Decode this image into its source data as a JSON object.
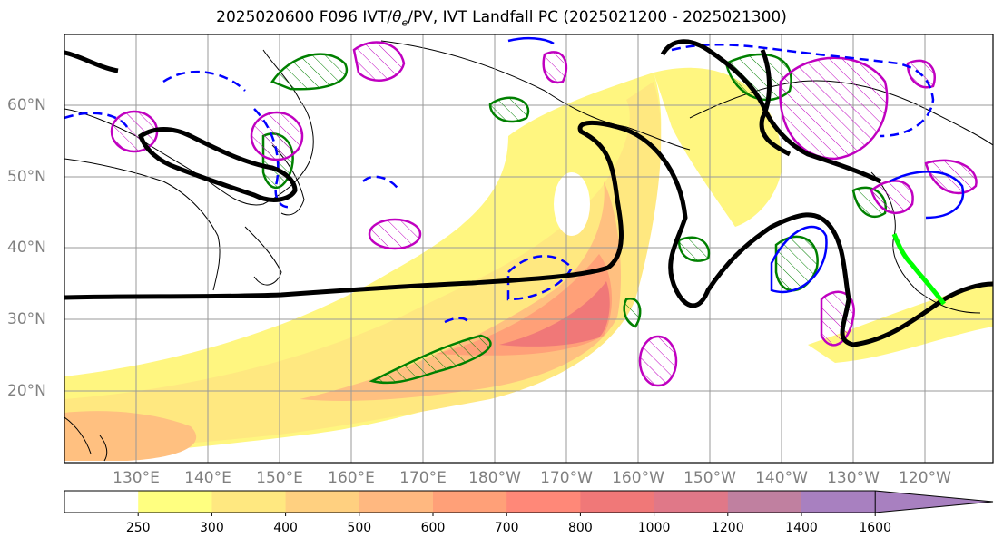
{
  "title": "2025020600 F096 IVT/θe/PV, IVT Landfall PC (2025021200 - 2025021300)",
  "title_parts": {
    "prefix": "2025020600 F096 IVT/",
    "theta": "θ",
    "theta_sub": "e",
    "suffix": "/PV, IVT Landfall PC (2025021200 - 2025021300)"
  },
  "lat_labels": [
    "60°N",
    "50°N",
    "40°N",
    "30°N",
    "20°N"
  ],
  "lon_labels": [
    "130°E",
    "140°E",
    "150°E",
    "160°E",
    "170°E",
    "180°W",
    "170°W",
    "160°W",
    "150°W",
    "140°W",
    "130°W",
    "120°W"
  ],
  "colorbar": {
    "ticks": [
      "250",
      "300",
      "400",
      "500",
      "600",
      "700",
      "800",
      "1000",
      "1200",
      "1400",
      "1600"
    ],
    "colors": [
      "#ffffff",
      "#ffff80",
      "#ffe880",
      "#ffd080",
      "#ffb880",
      "#ffa078",
      "#ff8878",
      "#f07878",
      "#e07888",
      "#c080a0",
      "#a880c0"
    ]
  },
  "colors": {
    "ivt_low": "#fff680",
    "ivt_mid": "#ffc080",
    "ivt_high": "#f07878",
    "theta_e_contour": "#000000",
    "pv_contour_green": "#008000",
    "pv_contour_magenta": "#c000c0",
    "pv_contour_blue": "#0000ff",
    "landfall": "#00ff00",
    "grid": "#999999",
    "axis_label": "#808080"
  }
}
